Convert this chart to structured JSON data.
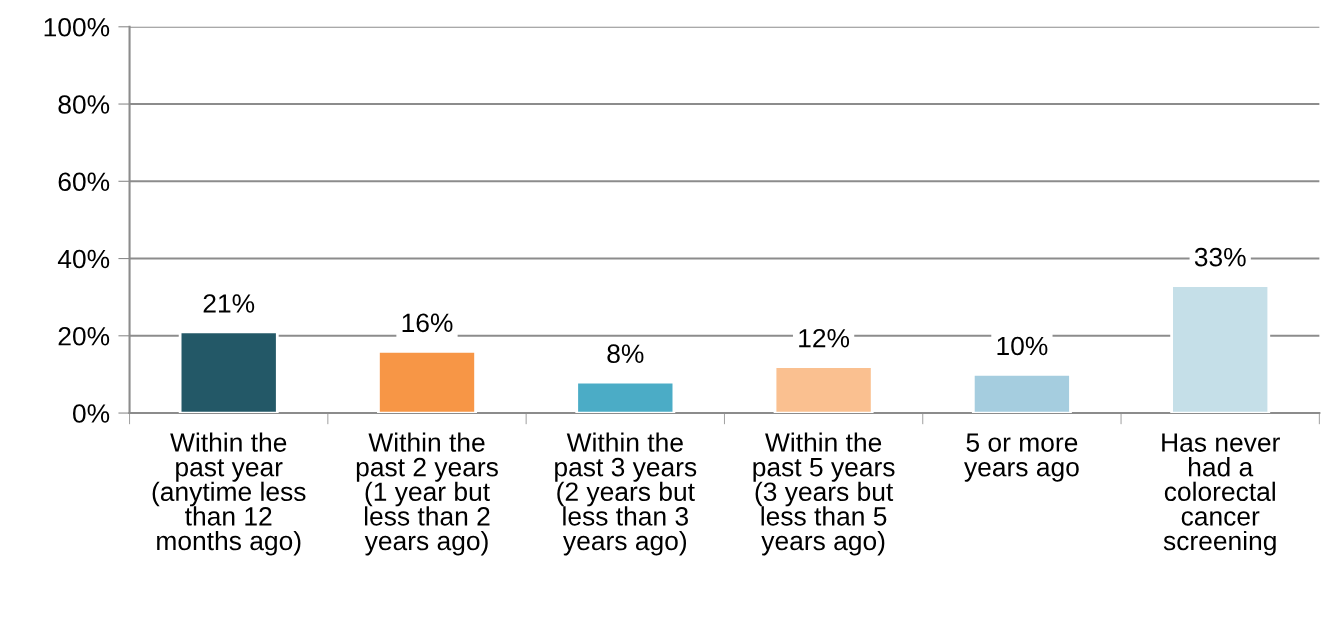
{
  "chart_data": {
    "type": "bar",
    "categories": [
      "Within the\npast year\n(anytime less\nthan 12\nmonths ago)",
      "Within the\npast 2 years\n(1 year but\nless than 2\nyears ago)",
      "Within the\npast 3 years\n(2 years but\nless than 3\nyears ago)",
      "Within the\npast 5 years\n(3 years but\nless than 5\nyears ago)",
      "5 or more\nyears ago",
      "Has never\nhad a\ncolorectal\ncancer\nscreening"
    ],
    "values": [
      21,
      16,
      8,
      12,
      10,
      33
    ],
    "value_labels": [
      "21%",
      "16%",
      "8%",
      "12%",
      "10%",
      "33%"
    ],
    "colors": [
      "#235867",
      "#f79646",
      "#4bacc6",
      "#fac090",
      "#a5cddf",
      "#c5dfe8"
    ],
    "ylim": [
      0,
      100
    ],
    "yticks": [
      {
        "value": 0,
        "label": "0%"
      },
      {
        "value": 20,
        "label": "20%"
      },
      {
        "value": 40,
        "label": "40%"
      },
      {
        "value": 60,
        "label": "60%"
      },
      {
        "value": 80,
        "label": "80%"
      },
      {
        "value": 100,
        "label": "100%"
      }
    ],
    "grid": "y",
    "legend": false
  }
}
